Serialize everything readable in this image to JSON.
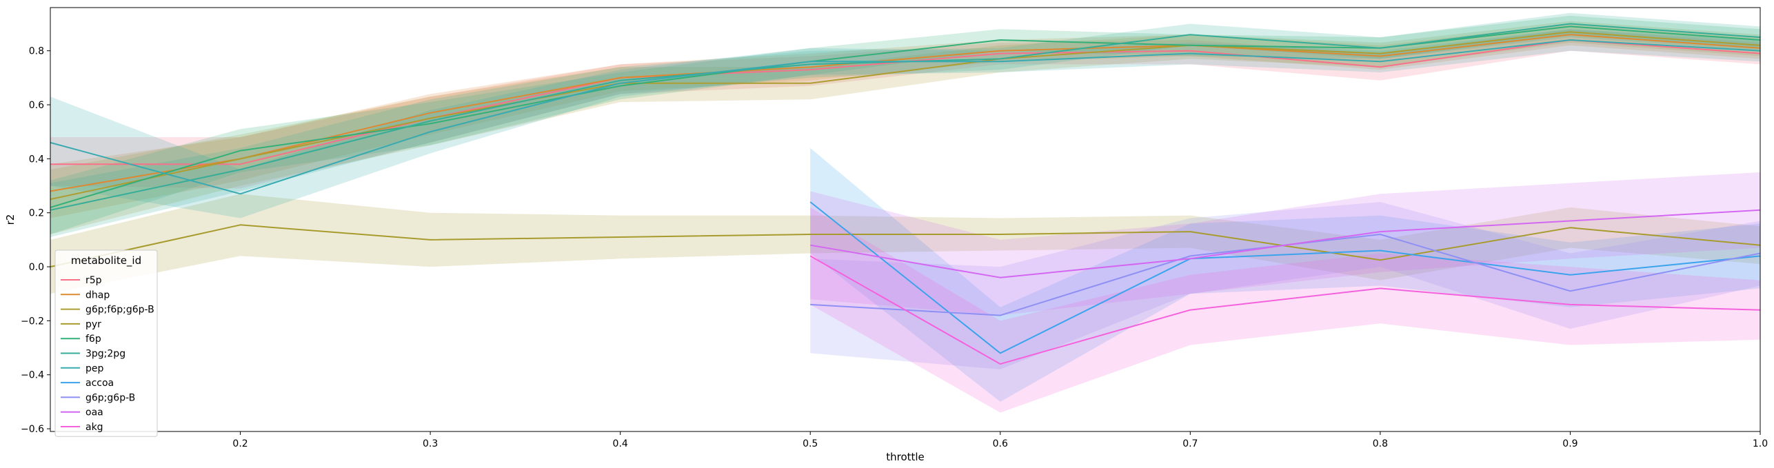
{
  "chart_data": {
    "type": "line",
    "title": "",
    "xlabel": "throttle",
    "ylabel": "r2",
    "xlim": [
      0.1,
      1.0
    ],
    "ylim": [
      -0.61,
      0.96
    ],
    "xticks": [
      0.2,
      0.3,
      0.4,
      0.5,
      0.6,
      0.7,
      0.8,
      0.9,
      1.0
    ],
    "xtick_labels": [
      "0.2",
      "0.3",
      "0.4",
      "0.5",
      "0.6",
      "0.7",
      "0.8",
      "0.9",
      "1.0"
    ],
    "yticks": [
      -0.6,
      -0.4,
      -0.2,
      0.0,
      0.2,
      0.4,
      0.6,
      0.8
    ],
    "ytick_labels": [
      "−0.6",
      "−0.4",
      "−0.2",
      "0.0",
      "0.2",
      "0.4",
      "0.6",
      "0.8"
    ],
    "grid": false,
    "legend_title": "metabolite_id",
    "legend_position": "lower-left",
    "series": [
      {
        "name": "r5p",
        "color": "#f77189",
        "x": [
          0.1,
          0.2,
          0.3,
          0.4,
          0.5,
          0.6,
          0.7,
          0.8,
          0.9,
          1.0
        ],
        "y": [
          0.38,
          0.38,
          0.55,
          0.7,
          0.73,
          0.79,
          0.8,
          0.74,
          0.84,
          0.79
        ],
        "lower": [
          0.3,
          0.29,
          0.46,
          0.64,
          0.67,
          0.75,
          0.75,
          0.69,
          0.8,
          0.75
        ],
        "upper": [
          0.48,
          0.48,
          0.63,
          0.75,
          0.78,
          0.83,
          0.84,
          0.79,
          0.88,
          0.83
        ]
      },
      {
        "name": "dhap",
        "color": "#dc8932",
        "x": [
          0.1,
          0.2,
          0.3,
          0.4,
          0.5,
          0.6,
          0.7,
          0.8,
          0.9,
          1.0
        ],
        "y": [
          0.28,
          0.4,
          0.57,
          0.7,
          0.74,
          0.8,
          0.82,
          0.78,
          0.86,
          0.81
        ],
        "lower": [
          0.18,
          0.32,
          0.49,
          0.65,
          0.69,
          0.76,
          0.78,
          0.73,
          0.82,
          0.77
        ],
        "upper": [
          0.38,
          0.48,
          0.64,
          0.75,
          0.79,
          0.84,
          0.86,
          0.82,
          0.9,
          0.85
        ]
      },
      {
        "name": "g6p;f6p;g6p-B",
        "color": "#ae9d31",
        "x": [
          0.1,
          0.2,
          0.3,
          0.4,
          0.5,
          0.6,
          0.7,
          0.8,
          0.9,
          1.0
        ],
        "y": [
          0.25,
          0.4,
          0.55,
          0.68,
          0.68,
          0.77,
          0.82,
          0.79,
          0.87,
          0.82
        ],
        "lower": [
          0.12,
          0.3,
          0.45,
          0.61,
          0.62,
          0.72,
          0.77,
          0.74,
          0.83,
          0.78
        ],
        "upper": [
          0.36,
          0.49,
          0.63,
          0.74,
          0.74,
          0.82,
          0.86,
          0.83,
          0.91,
          0.86
        ]
      },
      {
        "name": "pyr",
        "color": "#a79b2e",
        "x": [
          0.1,
          0.2,
          0.3,
          0.4,
          0.5,
          0.6,
          0.7,
          0.8,
          0.9,
          1.0
        ],
        "y": [
          0.0,
          0.155,
          0.1,
          0.11,
          0.12,
          0.12,
          0.13,
          0.025,
          0.145,
          0.08
        ],
        "lower": [
          -0.1,
          0.04,
          0.0,
          0.03,
          0.05,
          0.06,
          0.07,
          -0.05,
          0.07,
          0.01
        ],
        "upper": [
          0.1,
          0.27,
          0.2,
          0.19,
          0.19,
          0.18,
          0.19,
          0.1,
          0.22,
          0.15
        ]
      },
      {
        "name": "f6p",
        "color": "#33b07a",
        "x": [
          0.1,
          0.2,
          0.3,
          0.4,
          0.5,
          0.6,
          0.7,
          0.8,
          0.9,
          1.0
        ],
        "y": [
          0.22,
          0.43,
          0.53,
          0.67,
          0.76,
          0.84,
          0.82,
          0.81,
          0.89,
          0.84
        ],
        "lower": [
          0.12,
          0.35,
          0.45,
          0.62,
          0.71,
          0.8,
          0.78,
          0.77,
          0.85,
          0.8
        ],
        "upper": [
          0.32,
          0.51,
          0.61,
          0.72,
          0.81,
          0.88,
          0.86,
          0.85,
          0.93,
          0.88
        ]
      },
      {
        "name": "3pg;2pg",
        "color": "#36ad98",
        "x": [
          0.1,
          0.2,
          0.3,
          0.4,
          0.5,
          0.6,
          0.7,
          0.8,
          0.9,
          1.0
        ],
        "y": [
          0.21,
          0.36,
          0.54,
          0.69,
          0.75,
          0.77,
          0.86,
          0.81,
          0.9,
          0.85
        ],
        "lower": [
          0.11,
          0.28,
          0.46,
          0.64,
          0.7,
          0.73,
          0.82,
          0.77,
          0.86,
          0.81
        ],
        "upper": [
          0.31,
          0.44,
          0.62,
          0.74,
          0.8,
          0.81,
          0.9,
          0.85,
          0.94,
          0.89
        ]
      },
      {
        "name": "pep",
        "color": "#38aab0",
        "x": [
          0.1,
          0.2,
          0.3,
          0.4,
          0.5,
          0.6,
          0.7,
          0.8,
          0.9,
          1.0
        ],
        "y": [
          0.46,
          0.27,
          0.5,
          0.68,
          0.76,
          0.76,
          0.79,
          0.76,
          0.84,
          0.8
        ],
        "lower": [
          0.3,
          0.18,
          0.42,
          0.63,
          0.71,
          0.72,
          0.75,
          0.72,
          0.8,
          0.76
        ],
        "upper": [
          0.63,
          0.36,
          0.58,
          0.73,
          0.81,
          0.8,
          0.83,
          0.8,
          0.88,
          0.84
        ]
      },
      {
        "name": "accoa",
        "color": "#3ba3ec",
        "x": [
          0.5,
          0.6,
          0.7,
          0.8,
          0.9,
          1.0
        ],
        "y": [
          0.24,
          -0.32,
          0.03,
          0.06,
          -0.03,
          0.04
        ],
        "lower": [
          0.05,
          -0.5,
          -0.1,
          -0.07,
          -0.15,
          -0.08
        ],
        "upper": [
          0.44,
          -0.15,
          0.16,
          0.19,
          0.09,
          0.16
        ]
      },
      {
        "name": "g6p;g6p-B",
        "color": "#8e8ff5",
        "x": [
          0.5,
          0.6,
          0.7,
          0.8,
          0.9,
          1.0
        ],
        "y": [
          -0.14,
          -0.18,
          0.04,
          0.12,
          -0.09,
          0.05
        ],
        "lower": [
          -0.32,
          -0.38,
          -0.1,
          0.0,
          -0.23,
          -0.07
        ],
        "upper": [
          0.03,
          0.0,
          0.18,
          0.24,
          0.05,
          0.17
        ]
      },
      {
        "name": "oaa",
        "color": "#d467f2",
        "x": [
          0.5,
          0.6,
          0.7,
          0.8,
          0.9,
          1.0
        ],
        "y": [
          0.08,
          -0.04,
          0.03,
          0.13,
          0.17,
          0.21
        ],
        "lower": [
          -0.12,
          -0.18,
          -0.1,
          -0.02,
          0.03,
          0.07
        ],
        "upper": [
          0.28,
          0.1,
          0.16,
          0.27,
          0.31,
          0.35
        ]
      },
      {
        "name": "akg",
        "color": "#f561dd",
        "x": [
          0.5,
          0.6,
          0.7,
          0.8,
          0.9,
          1.0
        ],
        "y": [
          0.04,
          -0.36,
          -0.16,
          -0.08,
          -0.14,
          -0.16
        ],
        "lower": [
          -0.14,
          -0.54,
          -0.29,
          -0.21,
          -0.29,
          -0.27
        ],
        "upper": [
          0.22,
          -0.2,
          -0.03,
          0.05,
          0.0,
          -0.05
        ]
      }
    ]
  }
}
